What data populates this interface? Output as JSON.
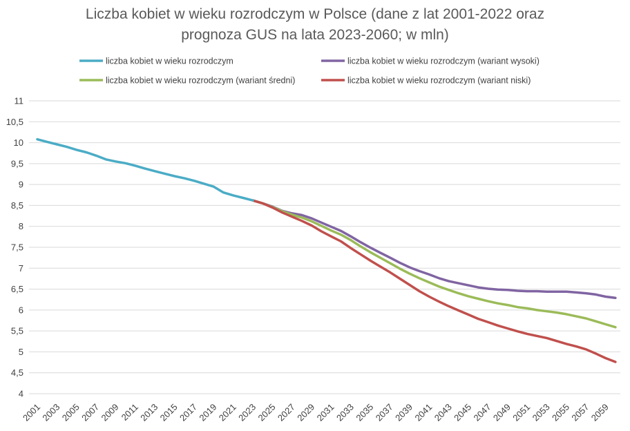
{
  "chart_data": {
    "type": "line",
    "title_line1": "Liczba kobiet w wieku rozrodczym w Polsce (dane z lat 2001-2022 oraz",
    "title_line2": "prognoza GUS na lata 2023-2060; w mln)",
    "ylim": [
      4,
      11
    ],
    "y_ticks": [
      "11",
      "10,5",
      "10",
      "9,5",
      "9",
      "8,5",
      "8",
      "7,5",
      "7",
      "6,5",
      "6",
      "5,5",
      "5",
      "4,5",
      "4"
    ],
    "y_tick_values": [
      11,
      10.5,
      10,
      9.5,
      9,
      8.5,
      8,
      7.5,
      7,
      6.5,
      6,
      5.5,
      5,
      4.5,
      4
    ],
    "x_tick_labels": [
      "2001",
      "2003",
      "2005",
      "2007",
      "2009",
      "2011",
      "2013",
      "2015",
      "2017",
      "2019",
      "2021",
      "2023",
      "2025",
      "2027",
      "2029",
      "2031",
      "2033",
      "2035",
      "2037",
      "2039",
      "2041",
      "2043",
      "2045",
      "2047",
      "2049",
      "2051",
      "2053",
      "2055",
      "2057",
      "2059"
    ],
    "grid": true,
    "legend_position": "top",
    "series": [
      {
        "name": "liczba kobiet w wieku rozrodczym",
        "color": "#4bacc6",
        "x": [
          2001,
          2002,
          2003,
          2004,
          2005,
          2006,
          2007,
          2008,
          2009,
          2010,
          2011,
          2012,
          2013,
          2014,
          2015,
          2016,
          2017,
          2018,
          2019,
          2020,
          2021,
          2022,
          2023
        ],
        "values": [
          10.08,
          10.02,
          9.96,
          9.9,
          9.83,
          9.77,
          9.69,
          9.6,
          9.55,
          9.51,
          9.45,
          9.38,
          9.32,
          9.26,
          9.2,
          9.15,
          9.09,
          9.02,
          8.95,
          8.81,
          8.74,
          8.68,
          8.62
        ]
      },
      {
        "name": "liczba kobiet w wieku rozrodczym (wariant wysoki)",
        "color": "#8064a2",
        "x": [
          2023,
          2024,
          2025,
          2026,
          2027,
          2028,
          2029,
          2030,
          2031,
          2032,
          2033,
          2034,
          2035,
          2036,
          2037,
          2038,
          2039,
          2040,
          2041,
          2042,
          2043,
          2044,
          2045,
          2046,
          2047,
          2048,
          2049,
          2050,
          2051,
          2052,
          2053,
          2054,
          2055,
          2056,
          2057,
          2058,
          2059,
          2060
        ],
        "values": [
          8.62,
          8.55,
          8.47,
          8.37,
          8.31,
          8.27,
          8.19,
          8.09,
          7.99,
          7.89,
          7.76,
          7.62,
          7.49,
          7.37,
          7.25,
          7.13,
          7.02,
          6.93,
          6.85,
          6.76,
          6.69,
          6.64,
          6.59,
          6.54,
          6.51,
          6.49,
          6.48,
          6.46,
          6.45,
          6.45,
          6.44,
          6.44,
          6.44,
          6.42,
          6.4,
          6.37,
          6.32,
          6.29
        ]
      },
      {
        "name": "liczba kobiet w wieku rozrodczym (wariant średni)",
        "color": "#9bbb59",
        "x": [
          2023,
          2024,
          2025,
          2026,
          2027,
          2028,
          2029,
          2030,
          2031,
          2032,
          2033,
          2034,
          2035,
          2036,
          2037,
          2038,
          2039,
          2040,
          2041,
          2042,
          2043,
          2044,
          2045,
          2046,
          2047,
          2048,
          2049,
          2050,
          2051,
          2052,
          2053,
          2054,
          2055,
          2056,
          2057,
          2058,
          2059,
          2060
        ],
        "values": [
          8.62,
          8.55,
          8.46,
          8.36,
          8.28,
          8.21,
          8.12,
          8.01,
          7.9,
          7.8,
          7.67,
          7.52,
          7.38,
          7.25,
          7.12,
          6.99,
          6.87,
          6.76,
          6.66,
          6.56,
          6.48,
          6.4,
          6.33,
          6.27,
          6.21,
          6.16,
          6.12,
          6.07,
          6.04,
          6.0,
          5.97,
          5.94,
          5.9,
          5.85,
          5.8,
          5.73,
          5.66,
          5.59
        ]
      },
      {
        "name": "liczba kobiet w wieku rozrodczym (wariant niski)",
        "color": "#c0504d",
        "x": [
          2023,
          2024,
          2025,
          2026,
          2027,
          2028,
          2029,
          2030,
          2031,
          2032,
          2033,
          2034,
          2035,
          2036,
          2037,
          2038,
          2039,
          2040,
          2041,
          2042,
          2043,
          2044,
          2045,
          2046,
          2047,
          2048,
          2049,
          2050,
          2051,
          2052,
          2053,
          2054,
          2055,
          2056,
          2057,
          2058,
          2059,
          2060
        ],
        "values": [
          8.62,
          8.55,
          8.45,
          8.33,
          8.23,
          8.13,
          8.02,
          7.88,
          7.76,
          7.64,
          7.48,
          7.33,
          7.18,
          7.04,
          6.9,
          6.75,
          6.6,
          6.45,
          6.32,
          6.2,
          6.09,
          5.99,
          5.89,
          5.79,
          5.71,
          5.63,
          5.56,
          5.49,
          5.43,
          5.38,
          5.33,
          5.26,
          5.19,
          5.13,
          5.06,
          4.96,
          4.85,
          4.76
        ]
      }
    ]
  }
}
